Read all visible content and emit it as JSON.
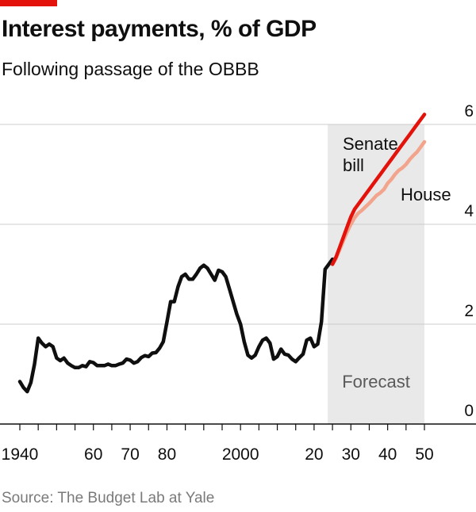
{
  "header": {
    "title": "Interest payments, % of GDP",
    "subtitle": "Following passage of the OBBB"
  },
  "footer": {
    "source": "Source: The Budget Lab at Yale"
  },
  "colors": {
    "accent": "#e3120b",
    "historical": "#0f0f0f",
    "senate": "#e3120b",
    "house": "#f2a48c",
    "forecast_shade": "#e9e9e9",
    "grid": "#cccccc"
  },
  "chart_data": {
    "type": "line",
    "ylim": [
      0,
      6
    ],
    "xlim": [
      1940,
      2055
    ],
    "y_ticks": [
      0,
      2,
      4,
      6
    ],
    "y_tick_labels": [
      "0",
      "2",
      "4",
      "6"
    ],
    "x_ticks_major": [
      1940,
      1960,
      1970,
      1980,
      2000,
      2020,
      2030,
      2040,
      2050
    ],
    "x_tick_labels": [
      "1940",
      "60",
      "70",
      "80",
      "2000",
      "20",
      "30",
      "40",
      "50"
    ],
    "grid": true,
    "forecast_region": {
      "start": 2025,
      "end": 2050,
      "label": "Forecast"
    },
    "series": [
      {
        "name": "",
        "x": [
          1940,
          1941,
          1942,
          1943,
          1944,
          1945,
          1946,
          1947,
          1948,
          1949,
          1950,
          1951,
          1952,
          1953,
          1954,
          1955,
          1956,
          1957,
          1958,
          1959,
          1960,
          1961,
          1962,
          1963,
          1964,
          1965,
          1966,
          1967,
          1968,
          1969,
          1970,
          1971,
          1972,
          1973,
          1974,
          1975,
          1976,
          1977,
          1978,
          1979,
          1980,
          1981,
          1982,
          1983,
          1984,
          1985,
          1986,
          1987,
          1988,
          1989,
          1990,
          1991,
          1992,
          1993,
          1994,
          1995,
          1996,
          1997,
          1998,
          1999,
          2000,
          2001,
          2002,
          2003,
          2004,
          2005,
          2006,
          2007,
          2008,
          2009,
          2010,
          2011,
          2012,
          2013,
          2014,
          2015,
          2016,
          2017,
          2018,
          2019,
          2020,
          2021,
          2022,
          2023,
          2024,
          2025
        ],
        "values": [
          0.85,
          0.73,
          0.65,
          0.83,
          1.2,
          1.72,
          1.62,
          1.55,
          1.6,
          1.55,
          1.32,
          1.27,
          1.32,
          1.22,
          1.17,
          1.13,
          1.13,
          1.17,
          1.15,
          1.25,
          1.23,
          1.17,
          1.17,
          1.17,
          1.2,
          1.17,
          1.17,
          1.2,
          1.22,
          1.3,
          1.28,
          1.22,
          1.25,
          1.33,
          1.37,
          1.35,
          1.42,
          1.43,
          1.52,
          1.65,
          2.05,
          2.45,
          2.45,
          2.75,
          2.95,
          3.0,
          2.9,
          2.9,
          3.0,
          3.12,
          3.18,
          3.12,
          3.0,
          2.88,
          3.08,
          3.05,
          2.95,
          2.7,
          2.45,
          2.2,
          2.0,
          1.65,
          1.38,
          1.32,
          1.38,
          1.55,
          1.68,
          1.72,
          1.62,
          1.3,
          1.35,
          1.5,
          1.4,
          1.38,
          1.3,
          1.25,
          1.33,
          1.4,
          1.68,
          1.72,
          1.55,
          1.6,
          2.05,
          3.1,
          3.2,
          3.3
        ]
      },
      {
        "name": "Senate bill",
        "x": [
          2025,
          2026,
          2027,
          2028,
          2029,
          2030,
          2031,
          2032,
          2033,
          2034,
          2035,
          2036,
          2037,
          2038,
          2039,
          2040,
          2041,
          2042,
          2043,
          2044,
          2045,
          2046,
          2047,
          2048,
          2049,
          2050
        ],
        "values": [
          3.2,
          3.35,
          3.55,
          3.75,
          3.95,
          4.15,
          4.3,
          4.4,
          4.5,
          4.6,
          4.7,
          4.8,
          4.9,
          5.0,
          5.1,
          5.2,
          5.3,
          5.4,
          5.5,
          5.6,
          5.7,
          5.8,
          5.9,
          6.0,
          6.1,
          6.2
        ]
      },
      {
        "name": "House",
        "x": [
          2025,
          2026,
          2027,
          2028,
          2029,
          2030,
          2031,
          2032,
          2033,
          2034,
          2035,
          2036,
          2037,
          2038,
          2039,
          2040,
          2041,
          2042,
          2043,
          2044,
          2045,
          2046,
          2047,
          2048,
          2049,
          2050
        ],
        "values": [
          3.2,
          3.32,
          3.5,
          3.68,
          3.85,
          4.0,
          4.13,
          4.22,
          4.28,
          4.35,
          4.42,
          4.5,
          4.58,
          4.63,
          4.7,
          4.82,
          4.9,
          5.0,
          5.08,
          5.13,
          5.2,
          5.3,
          5.38,
          5.45,
          5.55,
          5.65
        ]
      }
    ]
  }
}
